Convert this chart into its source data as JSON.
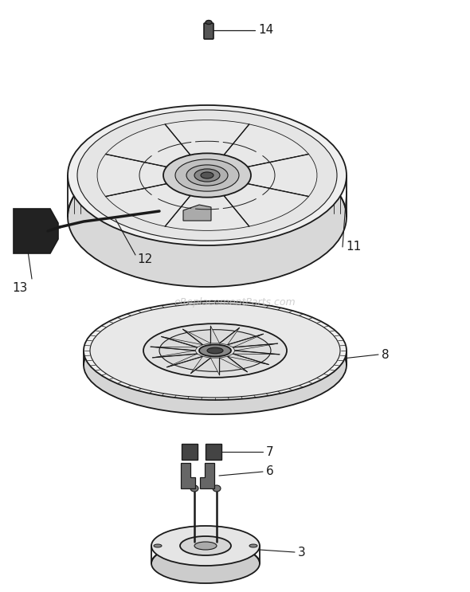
{
  "background_color": "#ffffff",
  "line_color": "#1a1a1a",
  "watermark_text": "eReplacementParts.com",
  "watermark_color": "#bbbbbb",
  "label_fontsize": 11,
  "figsize": [
    5.9,
    7.43
  ],
  "dpi": 100
}
